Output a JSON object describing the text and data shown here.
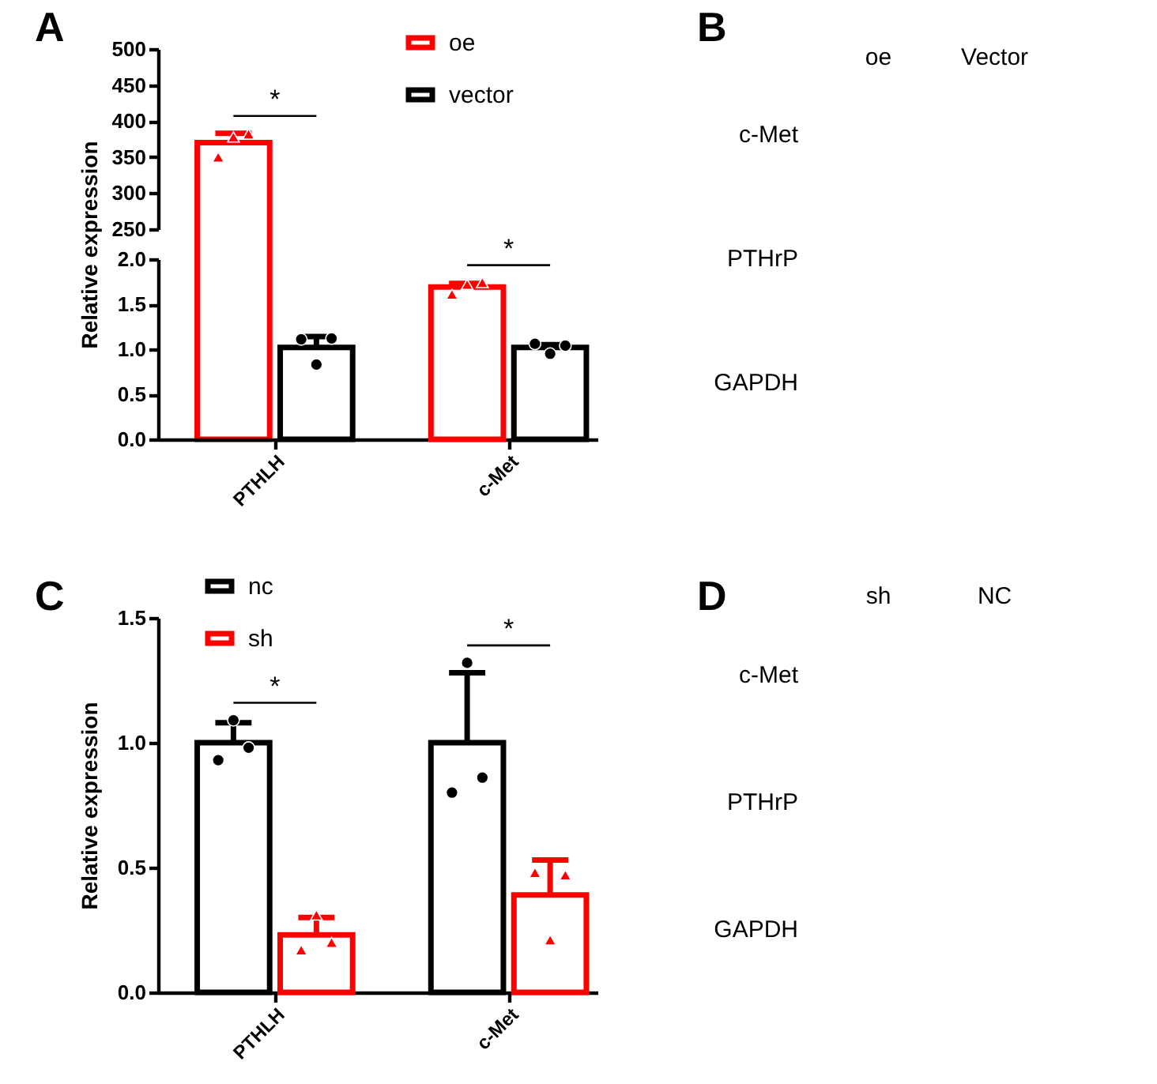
{
  "chart_data": [
    {
      "type": "bar",
      "title": "A",
      "categories": [
        "PTHLH",
        "c-Met"
      ],
      "series": [
        {
          "name": "oe",
          "color": "#ff0000",
          "values": [
            370,
            null
          ],
          "errors": [
            [
              370,
              383
            ],
            null
          ]
        },
        {
          "name": "vector",
          "color": "#000000",
          "values": [
            null,
            null
          ]
        },
        {
          "type": "scatter",
          "color": "#ff0000",
          "marker": "triangle",
          "x": [
            "PTHLH",
            "PTHLH",
            "PTHLH"
          ],
          "values": [
            350,
            378,
            382
          ]
        }
      ],
      "ylim": [
        250,
        500
      ],
      "yticks": [
        250,
        300,
        350,
        400,
        450,
        500
      ],
      "tick_labels": "y",
      "annotations": [
        "*"
      ],
      "legend": "top right"
    },
    {
      "type": "bar",
      "ylabel": "Relative expression",
      "categories": [
        "PTHLH",
        "c-Met"
      ],
      "series": [
        {
          "color": "#ff0000",
          "values": [
            null,
            1.69
          ],
          "errors": [
            null,
            [
              1.69,
              1.73
            ]
          ]
        },
        {
          "color": "#000000",
          "values": [
            1.02,
            1.02
          ],
          "errors": [
            [
              1.02,
              1.14
            ],
            [
              1.02,
              1.05
            ]
          ]
        },
        {
          "type": "scatter",
          "color": "#ff0000",
          "marker": "triangle",
          "x": [
            "c-Met",
            "c-Met",
            "c-Met"
          ],
          "values": [
            1.61,
            1.72,
            1.74
          ]
        },
        {
          "type": "scatter",
          "color": "#000000",
          "marker": "circle",
          "x": [
            "PTHLH",
            "PTHLH",
            "PTHLH",
            "c-Met",
            "c-Met",
            "c-Met"
          ],
          "values": [
            1.11,
            0.83,
            1.12,
            1.06,
            0.95,
            1.04
          ]
        }
      ],
      "ylim": [
        0,
        2
      ],
      "yticks": [
        {
          "value": 0,
          "label": "0.0"
        },
        {
          "value": 0.5,
          "label": "0.5"
        },
        {
          "value": 1,
          "label": "1.0"
        },
        {
          "value": 1.5,
          "label": "1.5"
        },
        {
          "value": 2,
          "label": "2.0"
        }
      ],
      "annotations": [
        "*"
      ]
    },
    {
      "type": "other",
      "title": "B",
      "categories": [
        "oe",
        "Vector"
      ],
      "y_categories": [
        "c-Met",
        "PTHrP",
        "GAPDH"
      ]
    },
    {
      "type": "bar",
      "title": "C",
      "ylabel": "Relative expression",
      "categories": [
        "PTHLH",
        "c-Met"
      ],
      "series": [
        {
          "name": "nc",
          "color": "#000000",
          "values": [
            1.0,
            1.0
          ],
          "errors": [
            [
              1.0,
              1.08
            ],
            [
              1.0,
              1.28
            ]
          ]
        },
        {
          "name": "sh",
          "color": "#ff0000",
          "values": [
            0.23,
            0.39
          ],
          "errors": [
            [
              0.23,
              0.3
            ],
            [
              0.39,
              0.53
            ]
          ]
        },
        {
          "type": "scatter",
          "color": "#000000",
          "marker": "circle",
          "x": [
            "PTHLH",
            "PTHLH",
            "PTHLH",
            "c-Met",
            "c-Met",
            "c-Met"
          ],
          "values": [
            0.93,
            1.09,
            0.98,
            0.8,
            1.32,
            0.86
          ]
        },
        {
          "type": "scatter",
          "color": "#ff0000",
          "marker": "triangle",
          "x": [
            "PTHLH",
            "PTHLH",
            "PTHLH",
            "c-Met",
            "c-Met",
            "c-Met"
          ],
          "values": [
            0.17,
            0.31,
            0.2,
            0.48,
            0.21,
            0.47
          ]
        }
      ],
      "ylim": [
        0,
        1.5
      ],
      "yticks": [
        {
          "value": 0,
          "label": "0.0"
        },
        {
          "value": 0.5,
          "label": "0.5"
        },
        {
          "value": 1,
          "label": "1.0"
        },
        {
          "value": 1.5,
          "label": "1.5"
        }
      ],
      "annotations": [
        "*",
        "*"
      ],
      "legend": "top left"
    },
    {
      "type": "other",
      "title": "D",
      "categories": [
        "sh",
        "NC"
      ],
      "y_categories": [
        "c-Met",
        "PTHrP",
        "GAPDH"
      ]
    }
  ]
}
